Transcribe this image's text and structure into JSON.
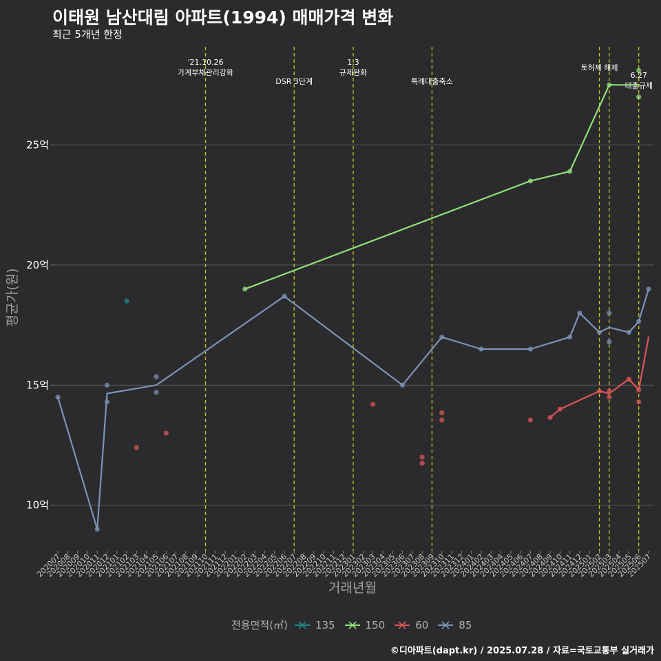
{
  "title": "이태원 남산대림 아파트(1994) 매매가격 변화",
  "subtitle": "최근 5개년 한정",
  "caption": "©디아파트(dapt.kr) / 2025.07.28 / 자료=국토교통부 실거래가",
  "chart_data": {
    "type": "line",
    "xlabel": "거래년월",
    "ylabel": "평균가(원)",
    "ylim": [
      8.1,
      29.2
    ],
    "yticks": [
      {
        "v": 10,
        "label": "10억"
      },
      {
        "v": 15,
        "label": "15억"
      },
      {
        "v": 20,
        "label": "20억"
      },
      {
        "v": 25,
        "label": "25억"
      }
    ],
    "grid": true,
    "legend_position": "bottom",
    "legend_title": "전용면적(㎡)",
    "categories": [
      "202007",
      "202008",
      "202009",
      "202010",
      "202011",
      "202012",
      "202101",
      "202102",
      "202103",
      "202104",
      "202105",
      "202106",
      "202107",
      "202108",
      "202109",
      "202110",
      "202111",
      "202112",
      "202201",
      "202202",
      "202203",
      "202204",
      "202205",
      "202206",
      "202207",
      "202208",
      "202209",
      "202210",
      "202211",
      "202212",
      "202301",
      "202302",
      "202303",
      "202304",
      "202305",
      "202306",
      "202307",
      "202308",
      "202309",
      "202310",
      "202311",
      "202312",
      "202401",
      "202402",
      "202403",
      "202404",
      "202405",
      "202406",
      "202407",
      "202408",
      "202409",
      "202410",
      "202411",
      "202412",
      "202501",
      "202502",
      "202503",
      "202504",
      "202505",
      "202506",
      "202507"
    ],
    "events": [
      {
        "x": "202110",
        "label": "'21.10.26\n가계부채관리강화",
        "row": 1
      },
      {
        "x": "202207",
        "label": "DSR 3단계",
        "row": 2
      },
      {
        "x": "202301",
        "label": "1.3\n규제완화",
        "row": 1
      },
      {
        "x": "202309",
        "label": "특례대출축소",
        "row": 2
      },
      {
        "x": "202502",
        "label": "토허제 해제",
        "row": 0
      },
      {
        "x": "202503",
        "label": "",
        "row": 0
      },
      {
        "x": "202506",
        "label": "6.27\n대출규제",
        "row": 3
      }
    ],
    "series": [
      {
        "name": "135",
        "color": "#1f8a8a",
        "line": [],
        "points": [
          [
            "202102",
            18.5
          ]
        ]
      },
      {
        "name": "150",
        "color": "#90e07a",
        "line": [
          [
            "202202",
            19.0
          ],
          [
            "202407",
            23.5
          ],
          [
            "202411",
            23.9
          ],
          [
            "202503",
            27.5
          ],
          [
            "202506",
            27.5
          ]
        ],
        "points": [
          [
            "202202",
            19.0
          ],
          [
            "202407",
            23.5
          ],
          [
            "202411",
            23.9
          ],
          [
            "202503",
            27.5
          ],
          [
            "202506",
            27.0
          ],
          [
            "202506",
            28.1
          ]
        ]
      },
      {
        "name": "60",
        "color": "#e05555",
        "line": [
          [
            "202409",
            13.65
          ],
          [
            "202410",
            14.0
          ],
          [
            "202502",
            14.75
          ],
          [
            "202503",
            14.65
          ],
          [
            "202505",
            15.25
          ],
          [
            "202506",
            14.8
          ],
          [
            "202507",
            17.0
          ]
        ],
        "points": [
          [
            "202103",
            12.4
          ],
          [
            "202106",
            13.0
          ],
          [
            "202303",
            14.2
          ],
          [
            "202308",
            12.0
          ],
          [
            "202308",
            11.75
          ],
          [
            "202310",
            13.85
          ],
          [
            "202310",
            13.55
          ],
          [
            "202407",
            13.55
          ],
          [
            "202409",
            13.65
          ],
          [
            "202410",
            14.0
          ],
          [
            "202502",
            14.75
          ],
          [
            "202503",
            14.75
          ],
          [
            "202503",
            14.5
          ],
          [
            "202505",
            15.25
          ],
          [
            "202506",
            14.3
          ],
          [
            "202506",
            14.8
          ]
        ]
      },
      {
        "name": "85",
        "color": "#7b93b8",
        "line": [
          [
            "202007",
            14.5
          ],
          [
            "202011",
            9.0
          ],
          [
            "202012",
            14.65
          ],
          [
            "202105",
            15.0
          ],
          [
            "202206",
            18.7
          ],
          [
            "202306",
            15.0
          ],
          [
            "202310",
            17.0
          ],
          [
            "202402",
            16.5
          ],
          [
            "202407",
            16.5
          ],
          [
            "202411",
            17.0
          ],
          [
            "202412",
            18.0
          ],
          [
            "202502",
            17.2
          ],
          [
            "202503",
            17.4
          ],
          [
            "202505",
            17.2
          ],
          [
            "202506",
            17.65
          ],
          [
            "202507",
            19.0
          ]
        ],
        "points": [
          [
            "202007",
            14.5
          ],
          [
            "202011",
            9.0
          ],
          [
            "202012",
            15.0
          ],
          [
            "202012",
            14.3
          ],
          [
            "202105",
            15.35
          ],
          [
            "202105",
            14.7
          ],
          [
            "202206",
            18.7
          ],
          [
            "202306",
            15.0
          ],
          [
            "202310",
            17.0
          ],
          [
            "202402",
            16.5
          ],
          [
            "202407",
            16.5
          ],
          [
            "202411",
            17.0
          ],
          [
            "202412",
            18.0
          ],
          [
            "202502",
            17.2
          ],
          [
            "202503",
            18.0
          ],
          [
            "202503",
            16.8
          ],
          [
            "202505",
            17.2
          ],
          [
            "202506",
            17.65
          ],
          [
            "202507",
            19.0
          ]
        ]
      }
    ]
  }
}
